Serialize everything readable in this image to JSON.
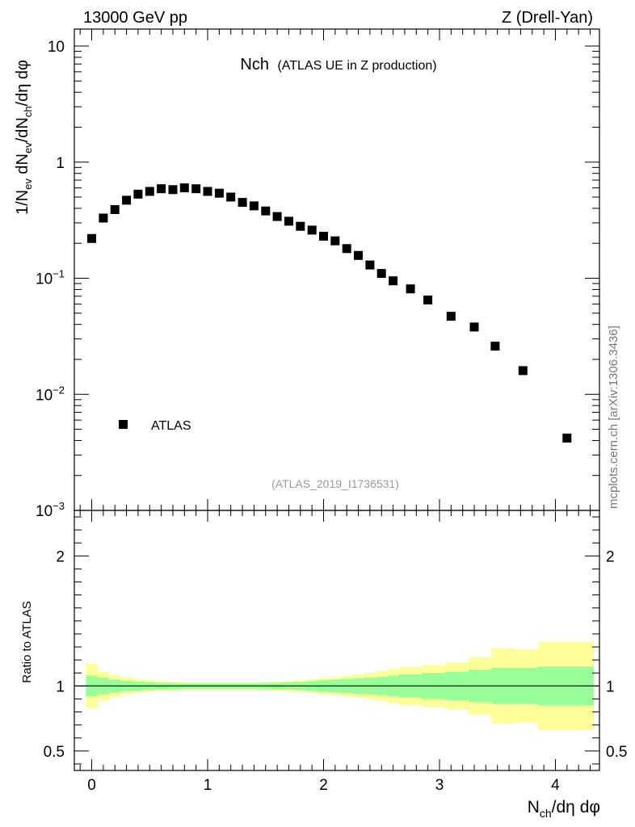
{
  "header": {
    "energy_label": "13000 GeV pp",
    "process_label": "Z (Drell-Yan)"
  },
  "watermark": "mcplots.cern.ch [arXiv:1306.3436]",
  "chart_data": [
    {
      "type": "scatter",
      "panel": "main",
      "title_main": "Nch",
      "title_sub": "(ATLAS UE in Z production)",
      "analysis_id": "(ATLAS_2019_I1736531)",
      "ylabel": "1/N_ev dN_ev/dN_ch/dη dφ",
      "yscale": "log",
      "ylim": [
        0.001,
        14
      ],
      "xlim": [
        -0.15,
        4.38
      ],
      "y_ticks": [
        {
          "value": 0.001,
          "base": "10",
          "exp": "−3"
        },
        {
          "value": 0.01,
          "base": "10",
          "exp": "−2"
        },
        {
          "value": 0.1,
          "base": "10",
          "exp": "−1"
        },
        {
          "value": 1,
          "base": "1",
          "exp": ""
        },
        {
          "value": 10,
          "base": "10",
          "exp": ""
        }
      ],
      "legend": {
        "label": "ATLAS",
        "position": "lower-left"
      },
      "series": [
        {
          "name": "ATLAS",
          "x": [
            0.0,
            0.1,
            0.2,
            0.3,
            0.4,
            0.5,
            0.6,
            0.7,
            0.8,
            0.9,
            1.0,
            1.1,
            1.2,
            1.3,
            1.4,
            1.5,
            1.6,
            1.7,
            1.8,
            1.9,
            2.0,
            2.1,
            2.2,
            2.3,
            2.4,
            2.5,
            2.6,
            2.75,
            2.9,
            3.1,
            3.3,
            3.48,
            3.72,
            4.1
          ],
          "y": [
            0.22,
            0.33,
            0.39,
            0.47,
            0.53,
            0.56,
            0.59,
            0.58,
            0.6,
            0.59,
            0.56,
            0.54,
            0.5,
            0.45,
            0.42,
            0.38,
            0.34,
            0.31,
            0.28,
            0.26,
            0.23,
            0.21,
            0.18,
            0.157,
            0.13,
            0.11,
            0.095,
            0.081,
            0.065,
            0.047,
            0.038,
            0.026,
            0.016,
            0.0042
          ]
        }
      ]
    },
    {
      "type": "area",
      "panel": "ratio",
      "ylabel": "Ratio to ATLAS",
      "xlabel": "N_ch/dη dφ",
      "ylim": [
        0.35,
        2.35
      ],
      "xlim": [
        -0.15,
        4.38
      ],
      "x_ticks": [
        "0",
        "1",
        "2",
        "3",
        "4"
      ],
      "y_ticks": [
        "0.5",
        "1",
        "2"
      ],
      "reference_line": 1,
      "bin_edges": [
        -0.05,
        0.05,
        0.15,
        0.25,
        0.35,
        0.45,
        0.55,
        0.65,
        0.75,
        0.85,
        0.95,
        1.05,
        1.15,
        1.25,
        1.35,
        1.45,
        1.55,
        1.65,
        1.75,
        1.85,
        1.95,
        2.05,
        2.15,
        2.25,
        2.35,
        2.45,
        2.55,
        2.65,
        2.85,
        3.05,
        3.25,
        3.45,
        3.65,
        3.85,
        4.33
      ],
      "bands": [
        {
          "name": "total uncertainty",
          "color": "#ffff99",
          "lo": [
            0.83,
            0.89,
            0.915,
            0.935,
            0.945,
            0.955,
            0.96,
            0.965,
            0.97,
            0.97,
            0.97,
            0.97,
            0.97,
            0.97,
            0.97,
            0.968,
            0.965,
            0.96,
            0.955,
            0.948,
            0.94,
            0.93,
            0.92,
            0.91,
            0.9,
            0.885,
            0.87,
            0.855,
            0.84,
            0.82,
            0.78,
            0.71,
            0.72,
            0.66
          ],
          "hi": [
            1.17,
            1.11,
            1.085,
            1.065,
            1.055,
            1.045,
            1.04,
            1.035,
            1.03,
            1.03,
            1.03,
            1.03,
            1.03,
            1.03,
            1.03,
            1.032,
            1.035,
            1.04,
            1.045,
            1.052,
            1.06,
            1.07,
            1.08,
            1.09,
            1.1,
            1.115,
            1.13,
            1.145,
            1.16,
            1.18,
            1.22,
            1.29,
            1.28,
            1.34
          ]
        },
        {
          "name": "statistical uncertainty",
          "color": "#99ff99",
          "lo": [
            0.92,
            0.935,
            0.95,
            0.96,
            0.965,
            0.97,
            0.975,
            0.978,
            0.98,
            0.98,
            0.98,
            0.98,
            0.98,
            0.98,
            0.98,
            0.978,
            0.976,
            0.972,
            0.968,
            0.962,
            0.955,
            0.95,
            0.945,
            0.94,
            0.935,
            0.93,
            0.92,
            0.91,
            0.9,
            0.89,
            0.875,
            0.86,
            0.86,
            0.85
          ],
          "hi": [
            1.08,
            1.065,
            1.05,
            1.04,
            1.035,
            1.03,
            1.025,
            1.022,
            1.02,
            1.02,
            1.02,
            1.02,
            1.02,
            1.02,
            1.02,
            1.022,
            1.024,
            1.028,
            1.032,
            1.038,
            1.045,
            1.05,
            1.055,
            1.06,
            1.065,
            1.07,
            1.08,
            1.09,
            1.1,
            1.11,
            1.125,
            1.14,
            1.14,
            1.15
          ]
        }
      ]
    }
  ]
}
